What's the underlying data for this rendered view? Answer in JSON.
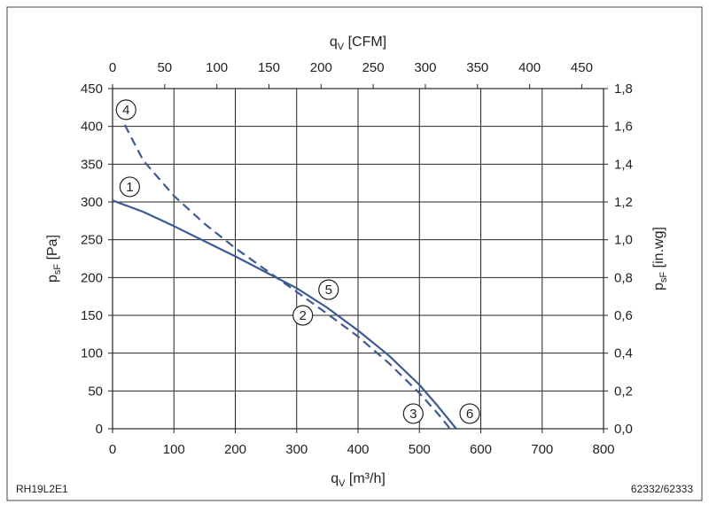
{
  "chart_data": {
    "type": "line",
    "title": "",
    "x_bottom": {
      "label": "q",
      "label_sub": "V",
      "label_unit": " [m³/h]",
      "range": [
        0,
        800
      ],
      "ticks": [
        "0",
        "100",
        "200",
        "300",
        "400",
        "500",
        "600",
        "700",
        "800"
      ]
    },
    "x_top": {
      "label": "q",
      "label_sub": "V",
      "label_unit": " [CFM]",
      "range": [
        0,
        470.9
      ],
      "ticks": [
        "0",
        "50",
        "100",
        "150",
        "200",
        "250",
        "300",
        "350",
        "400",
        "450"
      ]
    },
    "y_left": {
      "label": "p",
      "label_sub": "sF",
      "label_unit": " [Pa]",
      "range": [
        0,
        450
      ],
      "ticks": [
        "0",
        "50",
        "100",
        "150",
        "200",
        "250",
        "300",
        "350",
        "400",
        "450"
      ]
    },
    "y_right": {
      "label": "p",
      "label_sub": "sF",
      "label_unit": " [in.wg]",
      "range": [
        0,
        1.8
      ],
      "ticks": [
        "0,0",
        "0,2",
        "0,4",
        "0,6",
        "0,8",
        "1,0",
        "1,2",
        "1,4",
        "1,6",
        "1,8"
      ]
    },
    "grid": true,
    "series": [
      {
        "name": "solid",
        "style": "solid",
        "color": "#3d5a92",
        "x": [
          0,
          50,
          100,
          150,
          200,
          250,
          300,
          350,
          400,
          450,
          500,
          530,
          545,
          560
        ],
        "y": [
          302,
          287,
          268,
          248,
          228,
          207,
          186,
          160,
          130,
          97,
          58,
          30,
          15,
          0
        ]
      },
      {
        "name": "dashed",
        "style": "dashed",
        "color": "#3d5a92",
        "x": [
          20,
          50,
          100,
          150,
          200,
          250,
          300,
          350,
          400,
          450,
          500,
          530,
          550
        ],
        "y": [
          402,
          355,
          308,
          271,
          239,
          210,
          181,
          152,
          122,
          87,
          47,
          20,
          0
        ]
      }
    ],
    "markers": [
      {
        "label": "1",
        "x": 28,
        "y": 320
      },
      {
        "label": "2",
        "x": 310,
        "y": 150
      },
      {
        "label": "3",
        "x": 490,
        "y": 20
      },
      {
        "label": "4",
        "x": 22,
        "y": 422
      },
      {
        "label": "5",
        "x": 352,
        "y": 184
      },
      {
        "label": "6",
        "x": 582,
        "y": 20
      }
    ],
    "footer_left": "RH19L2E1",
    "footer_right": "62332/62333"
  }
}
